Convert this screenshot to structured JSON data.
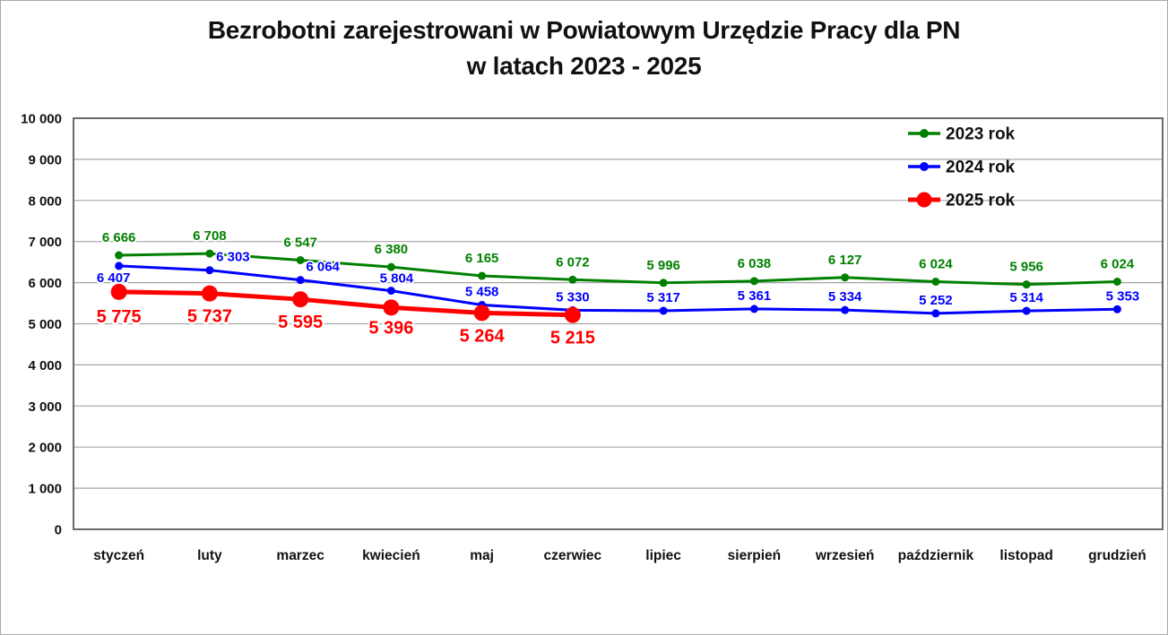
{
  "chart_data": {
    "type": "line",
    "title": "Bezrobotni zarejestrowani w Powiatowym Urzędzie Pracy dla PN w latach 2023 - 2025",
    "title_lines": [
      "Bezrobotni zarejestrowani w Powiatowym Urzędzie Pracy dla PN",
      "w latach 2023 - 2025"
    ],
    "categories": [
      "styczeń",
      "luty",
      "marzec",
      "kwiecień",
      "maj",
      "czerwiec",
      "lipiec",
      "sierpień",
      "wrzesień",
      "październik",
      "listopad",
      "grudzień"
    ],
    "series": [
      {
        "name": "2023 rok",
        "color": "#008000",
        "values": [
          6666,
          6708,
          6547,
          6380,
          6165,
          6072,
          5996,
          6038,
          6127,
          6024,
          5956,
          6024
        ],
        "line_width": 3,
        "marker_radius": 4.5,
        "label_size": 15,
        "label_dy": -15,
        "label_overrides": {}
      },
      {
        "name": "2024 rok",
        "color": "#0000ff",
        "values": [
          6407,
          6303,
          6064,
          5804,
          5458,
          5330,
          5317,
          5361,
          5334,
          5252,
          5314,
          5353
        ],
        "line_width": 3,
        "marker_radius": 4.5,
        "label_size": 15,
        "label_dy": -10,
        "label_overrides": {
          "0": {
            "dx": -6,
            "dy": 18
          },
          "1": {
            "dx": 26
          },
          "2": {
            "dx": 25
          },
          "3": {
            "dx": 6,
            "dy": -9
          },
          "11": {
            "dx": 6
          }
        }
      },
      {
        "name": "2025 rok",
        "color": "#ff0000",
        "values": [
          5775,
          5737,
          5595,
          5396,
          5264,
          5215
        ],
        "line_width": 5,
        "marker_radius": 9,
        "label_size": 20,
        "label_dy": 32,
        "label_overrides": {
          "0": {
            "dy": 34
          },
          "3": {
            "dy": 29
          }
        }
      }
    ],
    "xlabel": "",
    "ylabel": "",
    "ylim": [
      0,
      10000
    ],
    "ytick_step": 1000,
    "grid": true,
    "legend_position": "top-right",
    "thousands_separator": " "
  },
  "colors": {
    "gridline": "#a6a6a6",
    "plot_border": "#6a6a6a",
    "axis_text": "#111111",
    "background": "#ffffff"
  }
}
